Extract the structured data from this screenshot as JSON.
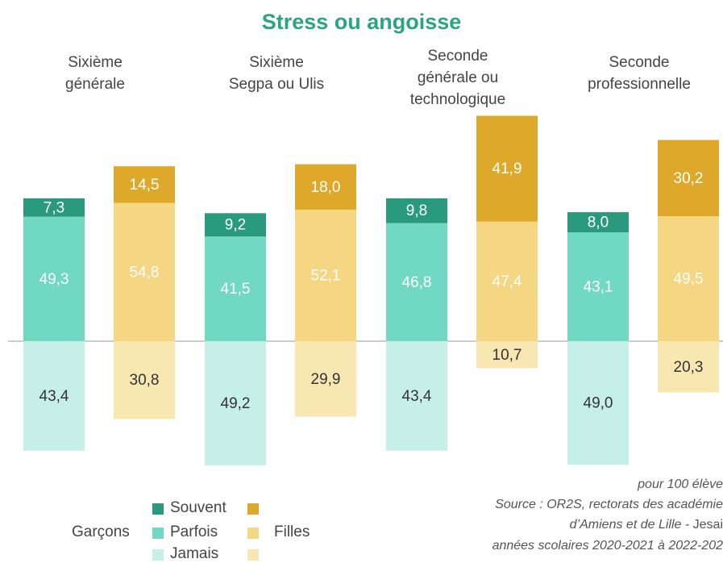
{
  "chart_data": {
    "type": "diverging_bar",
    "title": "Stress ou angoisse",
    "categories": [
      "Sixième\ngénérale",
      "Sixième\nSegpa ou Ulis",
      "Seconde\ngénérale ou\ntechnologique",
      "Seconde\nprofessionnelle"
    ],
    "groups": [
      {
        "name": "Garçons",
        "series": [
          {
            "name": "Souvent",
            "color": "#2a9a7e",
            "label_color": "#ffffff",
            "side": "positive",
            "values": [
              7.3,
              9.2,
              9.8,
              8.0
            ],
            "value_labels": [
              "7,3",
              "9,2",
              "9,8",
              "8,0"
            ]
          },
          {
            "name": "Parfois",
            "color": "#70d8c3",
            "label_color": "#ffffff",
            "side": "positive",
            "values": [
              49.3,
              41.5,
              46.8,
              43.1
            ],
            "value_labels": [
              "49,3",
              "41,5",
              "46,8",
              "43,1"
            ]
          },
          {
            "name": "Jamais",
            "color": "#c6efe7",
            "label_color": "#333333",
            "side": "negative",
            "values": [
              43.4,
              49.2,
              43.4,
              49.0
            ],
            "value_labels": [
              "43,4",
              "49,2",
              "43,4",
              "49,0"
            ]
          }
        ]
      },
      {
        "name": "Filles",
        "series": [
          {
            "color": "#dea92b",
            "label_color": "#ffffff",
            "side": "positive",
            "values": [
              14.5,
              18.0,
              41.9,
              30.2
            ],
            "value_labels": [
              "14,5",
              "18,0",
              "41,9",
              "30,2"
            ]
          },
          {
            "color": "#f5d783",
            "label_color": "#ffffff",
            "side": "positive",
            "values": [
              54.8,
              52.1,
              47.4,
              49.5
            ],
            "value_labels": [
              "54,8",
              "52,1",
              "47,4",
              "49,5"
            ]
          },
          {
            "color": "#f9e7b2",
            "label_color": "#333333",
            "side": "negative",
            "values": [
              30.8,
              29.9,
              10.7,
              20.3
            ],
            "value_labels": [
              "30,8",
              "29,9",
              "10,7",
              "20,3"
            ]
          }
        ]
      }
    ],
    "notes": [
      "pour 100 élève",
      "Source : OR2S, rectorats des académie",
      "d’Amiens et de Lille - ",
      "années scolaires 2020-2021 à 2022-202"
    ],
    "credit": "Jesai"
  }
}
